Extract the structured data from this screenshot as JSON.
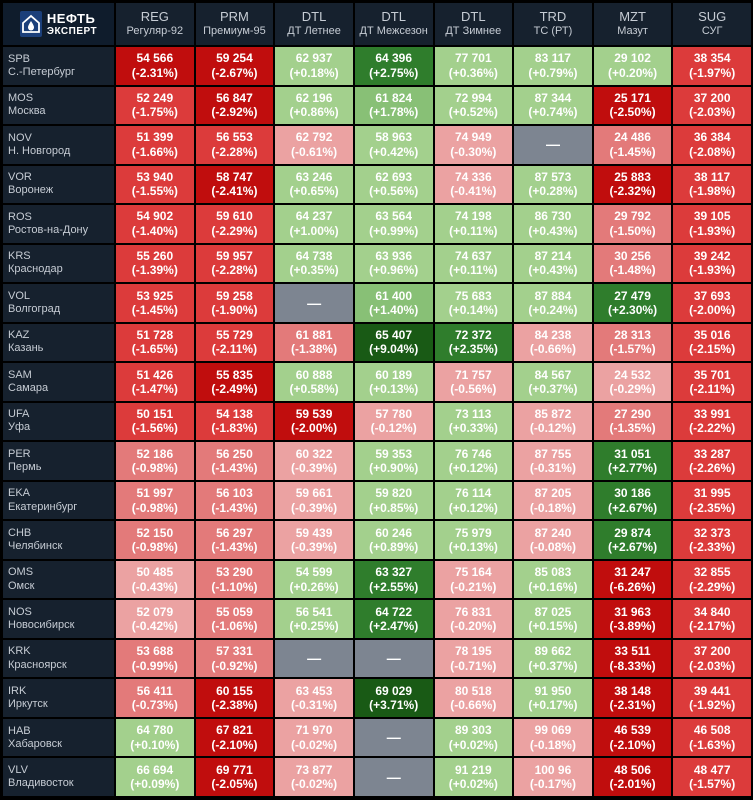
{
  "brand": {
    "line1": "НЕФТЬ",
    "line2": "ЭКСПЕРТ"
  },
  "products": [
    {
      "code": "REG",
      "name": "Регуляр-92"
    },
    {
      "code": "PRM",
      "name": "Премиум-95"
    },
    {
      "code": "DTL",
      "name": "ДТ Летнее"
    },
    {
      "code": "DTL",
      "name": "ДТ Межсезон"
    },
    {
      "code": "DTL",
      "name": "ДТ Зимнее"
    },
    {
      "code": "TRD",
      "name": "ТС (РТ)"
    },
    {
      "code": "MZT",
      "name": "Мазут"
    },
    {
      "code": "SUG",
      "name": "СУГ"
    }
  ],
  "rows": [
    {
      "code": "SPB",
      "name": "С.-Петербург",
      "cells": [
        {
          "price": "54 566",
          "change": "(-2.31%)",
          "color": "r3"
        },
        {
          "price": "59 254",
          "change": "(-2.67%)",
          "color": "r3"
        },
        {
          "price": "62 937",
          "change": "(+0.18%)",
          "color": "g0"
        },
        {
          "price": "64 396",
          "change": "(+2.75%)",
          "color": "g2"
        },
        {
          "price": "77 701",
          "change": "(+0.36%)",
          "color": "g0"
        },
        {
          "price": "83 117",
          "change": "(+0.79%)",
          "color": "g0"
        },
        {
          "price": "29 102",
          "change": "(+0.20%)",
          "color": "g0"
        },
        {
          "price": "38 354",
          "change": "(-1.97%)",
          "color": "r2"
        }
      ]
    },
    {
      "code": "MOS",
      "name": "Москва",
      "cells": [
        {
          "price": "52 249",
          "change": "(-1.75%)",
          "color": "r2"
        },
        {
          "price": "56 847",
          "change": "(-2.92%)",
          "color": "r3"
        },
        {
          "price": "62 196",
          "change": "(+0.86%)",
          "color": "g0"
        },
        {
          "price": "61 824",
          "change": "(+1.78%)",
          "color": "g1"
        },
        {
          "price": "72 994",
          "change": "(+0.52%)",
          "color": "g0"
        },
        {
          "price": "87 344",
          "change": "(+0.74%)",
          "color": "g0"
        },
        {
          "price": "25 171",
          "change": "(-2.50%)",
          "color": "r3"
        },
        {
          "price": "37 200",
          "change": "(-2.03%)",
          "color": "r2"
        }
      ]
    },
    {
      "code": "NOV",
      "name": "Н. Новгород",
      "cells": [
        {
          "price": "51 399",
          "change": "(-1.66%)",
          "color": "r2"
        },
        {
          "price": "56 553",
          "change": "(-2.28%)",
          "color": "r2"
        },
        {
          "price": "62 792",
          "change": "(-0.61%)",
          "color": "r0"
        },
        {
          "price": "58 963",
          "change": "(+0.42%)",
          "color": "g0"
        },
        {
          "price": "74 949",
          "change": "(-0.30%)",
          "color": "r0"
        },
        {
          "price": "—",
          "change": "",
          "color": "na"
        },
        {
          "price": "24 486",
          "change": "(-1.45%)",
          "color": "r1"
        },
        {
          "price": "36 384",
          "change": "(-2.08%)",
          "color": "r2"
        }
      ]
    },
    {
      "code": "VOR",
      "name": "Воронеж",
      "cells": [
        {
          "price": "53 940",
          "change": "(-1.55%)",
          "color": "r2"
        },
        {
          "price": "58 747",
          "change": "(-2.41%)",
          "color": "r3"
        },
        {
          "price": "63 246",
          "change": "(+0.65%)",
          "color": "g0"
        },
        {
          "price": "62 693",
          "change": "(+0.56%)",
          "color": "g0"
        },
        {
          "price": "74 336",
          "change": "(-0.41%)",
          "color": "r0"
        },
        {
          "price": "87 573",
          "change": "(+0.28%)",
          "color": "g0"
        },
        {
          "price": "25 883",
          "change": "(-2.32%)",
          "color": "r3"
        },
        {
          "price": "38 117",
          "change": "(-1.98%)",
          "color": "r2"
        }
      ]
    },
    {
      "code": "ROS",
      "name": "Ростов-на-Дону",
      "cells": [
        {
          "price": "54 902",
          "change": "(-1.40%)",
          "color": "r2"
        },
        {
          "price": "59 610",
          "change": "(-2.29%)",
          "color": "r2"
        },
        {
          "price": "64 237",
          "change": "(+1.00%)",
          "color": "g0"
        },
        {
          "price": "63 564",
          "change": "(+0.99%)",
          "color": "g0"
        },
        {
          "price": "74 198",
          "change": "(+0.11%)",
          "color": "g0"
        },
        {
          "price": "86 730",
          "change": "(+0.43%)",
          "color": "g0"
        },
        {
          "price": "29 792",
          "change": "(-1.50%)",
          "color": "r1"
        },
        {
          "price": "39 105",
          "change": "(-1.93%)",
          "color": "r2"
        }
      ]
    },
    {
      "code": "KRS",
      "name": "Краснодар",
      "cells": [
        {
          "price": "55 260",
          "change": "(-1.39%)",
          "color": "r2"
        },
        {
          "price": "59 957",
          "change": "(-2.28%)",
          "color": "r2"
        },
        {
          "price": "64 738",
          "change": "(+0.35%)",
          "color": "g0"
        },
        {
          "price": "63 936",
          "change": "(+0.96%)",
          "color": "g0"
        },
        {
          "price": "74 637",
          "change": "(+0.11%)",
          "color": "g0"
        },
        {
          "price": "87 214",
          "change": "(+0.43%)",
          "color": "g0"
        },
        {
          "price": "30 256",
          "change": "(-1.48%)",
          "color": "r1"
        },
        {
          "price": "39 242",
          "change": "(-1.93%)",
          "color": "r2"
        }
      ]
    },
    {
      "code": "VOL",
      "name": "Волгоград",
      "cells": [
        {
          "price": "53 925",
          "change": "(-1.45%)",
          "color": "r2"
        },
        {
          "price": "59 258",
          "change": "(-1.90%)",
          "color": "r2"
        },
        {
          "price": "—",
          "change": "",
          "color": "na"
        },
        {
          "price": "61 400",
          "change": "(+1.40%)",
          "color": "g1"
        },
        {
          "price": "75 683",
          "change": "(+0.14%)",
          "color": "g0"
        },
        {
          "price": "87 884",
          "change": "(+0.24%)",
          "color": "g0"
        },
        {
          "price": "27 479",
          "change": "(+2.30%)",
          "color": "g2"
        },
        {
          "price": "37 693",
          "change": "(-2.00%)",
          "color": "r2"
        }
      ]
    },
    {
      "code": "KAZ",
      "name": "Казань",
      "cells": [
        {
          "price": "51 728",
          "change": "(-1.65%)",
          "color": "r2"
        },
        {
          "price": "55 729",
          "change": "(-2.11%)",
          "color": "r2"
        },
        {
          "price": "61 881",
          "change": "(-1.38%)",
          "color": "r1"
        },
        {
          "price": "65 407",
          "change": "(+9.04%)",
          "color": "g3"
        },
        {
          "price": "72 372",
          "change": "(+2.35%)",
          "color": "g2"
        },
        {
          "price": "84 238",
          "change": "(-0.66%)",
          "color": "r0"
        },
        {
          "price": "28 313",
          "change": "(-1.57%)",
          "color": "r1"
        },
        {
          "price": "35 016",
          "change": "(-2.15%)",
          "color": "r2"
        }
      ]
    },
    {
      "code": "SAM",
      "name": "Самара",
      "cells": [
        {
          "price": "51 426",
          "change": "(-1.47%)",
          "color": "r2"
        },
        {
          "price": "55 835",
          "change": "(-2.49%)",
          "color": "r3"
        },
        {
          "price": "60 888",
          "change": "(+0.58%)",
          "color": "g0"
        },
        {
          "price": "60 189",
          "change": "(+0.13%)",
          "color": "g0"
        },
        {
          "price": "71 757",
          "change": "(-0.56%)",
          "color": "r0"
        },
        {
          "price": "84 567",
          "change": "(+0.37%)",
          "color": "g0"
        },
        {
          "price": "24 532",
          "change": "(-0.29%)",
          "color": "r0"
        },
        {
          "price": "35 701",
          "change": "(-2.11%)",
          "color": "r2"
        }
      ]
    },
    {
      "code": "UFA",
      "name": "Уфа",
      "cells": [
        {
          "price": "50 151",
          "change": "(-1.56%)",
          "color": "r2"
        },
        {
          "price": "54 138",
          "change": "(-1.83%)",
          "color": "r2"
        },
        {
          "price": "59 539",
          "change": "(-2.00%)",
          "color": "r3"
        },
        {
          "price": "57 780",
          "change": "(-0.12%)",
          "color": "r0"
        },
        {
          "price": "73 113",
          "change": "(+0.33%)",
          "color": "g0"
        },
        {
          "price": "85 872",
          "change": "(-0.12%)",
          "color": "r0"
        },
        {
          "price": "27 290",
          "change": "(-1.35%)",
          "color": "r1"
        },
        {
          "price": "33 991",
          "change": "(-2.22%)",
          "color": "r2"
        }
      ]
    },
    {
      "code": "PER",
      "name": "Пермь",
      "cells": [
        {
          "price": "52 186",
          "change": "(-0.98%)",
          "color": "r1"
        },
        {
          "price": "56 250",
          "change": "(-1.43%)",
          "color": "r1"
        },
        {
          "price": "60 322",
          "change": "(-0.39%)",
          "color": "r0"
        },
        {
          "price": "59 353",
          "change": "(+0.90%)",
          "color": "g0"
        },
        {
          "price": "76 746",
          "change": "(+0.12%)",
          "color": "g0"
        },
        {
          "price": "87 755",
          "change": "(-0.31%)",
          "color": "r0"
        },
        {
          "price": "31 051",
          "change": "(+2.77%)",
          "color": "g2"
        },
        {
          "price": "33 287",
          "change": "(-2.26%)",
          "color": "r2"
        }
      ]
    },
    {
      "code": "EKA",
      "name": "Екатеринбург",
      "cells": [
        {
          "price": "51 997",
          "change": "(-0.98%)",
          "color": "r1"
        },
        {
          "price": "56 103",
          "change": "(-1.43%)",
          "color": "r1"
        },
        {
          "price": "59 661",
          "change": "(-0.39%)",
          "color": "r0"
        },
        {
          "price": "59 820",
          "change": "(+0.85%)",
          "color": "g0"
        },
        {
          "price": "76 114",
          "change": "(+0.12%)",
          "color": "g0"
        },
        {
          "price": "87 205",
          "change": "(-0.18%)",
          "color": "r0"
        },
        {
          "price": "30 186",
          "change": "(+2.67%)",
          "color": "g2"
        },
        {
          "price": "31 995",
          "change": "(-2.35%)",
          "color": "r2"
        }
      ]
    },
    {
      "code": "CHB",
      "name": "Челябинск",
      "cells": [
        {
          "price": "52 150",
          "change": "(-0.98%)",
          "color": "r1"
        },
        {
          "price": "56 297",
          "change": "(-1.43%)",
          "color": "r1"
        },
        {
          "price": "59 439",
          "change": "(-0.39%)",
          "color": "r0"
        },
        {
          "price": "60 246",
          "change": "(+0.89%)",
          "color": "g0"
        },
        {
          "price": "75 979",
          "change": "(+0.13%)",
          "color": "g0"
        },
        {
          "price": "87 240",
          "change": "(-0.08%)",
          "color": "r0"
        },
        {
          "price": "29 874",
          "change": "(+2.67%)",
          "color": "g2"
        },
        {
          "price": "32 373",
          "change": "(-2.33%)",
          "color": "r2"
        }
      ]
    },
    {
      "code": "OMS",
      "name": "Омск",
      "cells": [
        {
          "price": "50 485",
          "change": "(-0.43%)",
          "color": "r0"
        },
        {
          "price": "53 290",
          "change": "(-1.10%)",
          "color": "r1"
        },
        {
          "price": "54 599",
          "change": "(+0.26%)",
          "color": "g0"
        },
        {
          "price": "63 327",
          "change": "(+2.55%)",
          "color": "g2"
        },
        {
          "price": "75 164",
          "change": "(-0.21%)",
          "color": "r0"
        },
        {
          "price": "85 083",
          "change": "(+0.16%)",
          "color": "g0"
        },
        {
          "price": "31 247",
          "change": "(-6.26%)",
          "color": "r3"
        },
        {
          "price": "32 855",
          "change": "(-2.29%)",
          "color": "r2"
        }
      ]
    },
    {
      "code": "NOS",
      "name": "Новосибирск",
      "cells": [
        {
          "price": "52 079",
          "change": "(-0.42%)",
          "color": "r0"
        },
        {
          "price": "55 059",
          "change": "(-1.06%)",
          "color": "r1"
        },
        {
          "price": "56 541",
          "change": "(+0.25%)",
          "color": "g0"
        },
        {
          "price": "64 722",
          "change": "(+2.47%)",
          "color": "g2"
        },
        {
          "price": "76 831",
          "change": "(-0.20%)",
          "color": "r0"
        },
        {
          "price": "87 025",
          "change": "(+0.15%)",
          "color": "g0"
        },
        {
          "price": "31 963",
          "change": "(-3.89%)",
          "color": "r3"
        },
        {
          "price": "34 840",
          "change": "(-2.17%)",
          "color": "r2"
        }
      ]
    },
    {
      "code": "KRK",
      "name": "Красноярск",
      "cells": [
        {
          "price": "53 688",
          "change": "(-0.99%)",
          "color": "r1"
        },
        {
          "price": "57 331",
          "change": "(-0.92%)",
          "color": "r1"
        },
        {
          "price": "—",
          "change": "",
          "color": "na"
        },
        {
          "price": "—",
          "change": "",
          "color": "na"
        },
        {
          "price": "78 195",
          "change": "(-0.71%)",
          "color": "r0"
        },
        {
          "price": "89 662",
          "change": "(+0.37%)",
          "color": "g0"
        },
        {
          "price": "33 511",
          "change": "(-8.33%)",
          "color": "r3"
        },
        {
          "price": "37 200",
          "change": "(-2.03%)",
          "color": "r2"
        }
      ]
    },
    {
      "code": "IRK",
      "name": "Иркутск",
      "cells": [
        {
          "price": "56 411",
          "change": "(-0.73%)",
          "color": "r1"
        },
        {
          "price": "60 155",
          "change": "(-2.38%)",
          "color": "r3"
        },
        {
          "price": "63 453",
          "change": "(-0.31%)",
          "color": "r0"
        },
        {
          "price": "69 029",
          "change": "(+3.71%)",
          "color": "g3"
        },
        {
          "price": "80 518",
          "change": "(-0.66%)",
          "color": "r0"
        },
        {
          "price": "91 950",
          "change": "(+0.17%)",
          "color": "g0"
        },
        {
          "price": "38 148",
          "change": "(-2.31%)",
          "color": "r3"
        },
        {
          "price": "39 441",
          "change": "(-1.92%)",
          "color": "r2"
        }
      ]
    },
    {
      "code": "HAB",
      "name": "Хабаровск",
      "cells": [
        {
          "price": "64 780",
          "change": "(+0.10%)",
          "color": "g0"
        },
        {
          "price": "67 821",
          "change": "(-2.10%)",
          "color": "r3"
        },
        {
          "price": "71 970",
          "change": "(-0.02%)",
          "color": "r0"
        },
        {
          "price": "—",
          "change": "",
          "color": "na"
        },
        {
          "price": "89 303",
          "change": "(+0.02%)",
          "color": "g0"
        },
        {
          "price": "99 069",
          "change": "(-0.18%)",
          "color": "r0"
        },
        {
          "price": "46 539",
          "change": "(-2.10%)",
          "color": "r3"
        },
        {
          "price": "46 508",
          "change": "(-1.63%)",
          "color": "r2"
        }
      ]
    },
    {
      "code": "VLV",
      "name": "Владивосток",
      "cells": [
        {
          "price": "66 694",
          "change": "(+0.09%)",
          "color": "g0"
        },
        {
          "price": "69 771",
          "change": "(-2.05%)",
          "color": "r3"
        },
        {
          "price": "73 877",
          "change": "(-0.02%)",
          "color": "r0"
        },
        {
          "price": "—",
          "change": "",
          "color": "na"
        },
        {
          "price": "91 219",
          "change": "(+0.02%)",
          "color": "g0"
        },
        {
          "price": "100 96",
          "change": "(-0.17%)",
          "color": "r0"
        },
        {
          "price": "48 506",
          "change": "(-2.01%)",
          "color": "r3"
        },
        {
          "price": "48 477",
          "change": "(-1.57%)",
          "color": "r2"
        }
      ]
    }
  ]
}
